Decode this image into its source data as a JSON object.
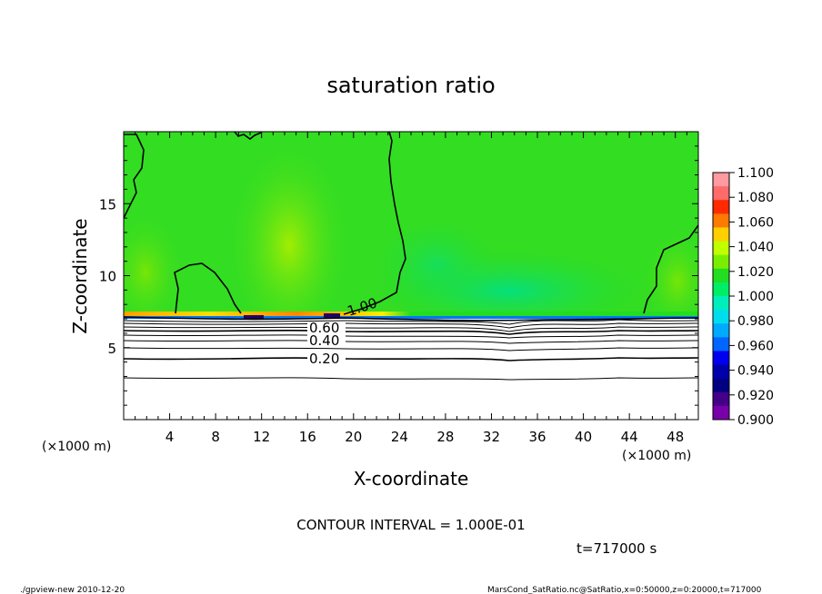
{
  "chart_data": {
    "type": "heatmap",
    "title": "saturation ratio",
    "xlabel": "X-coordinate",
    "ylabel": "Z-coordinate",
    "x_unit_note": "(×1000 m)",
    "y_unit_note": "(×1000 m)",
    "xlim": [
      0,
      50
    ],
    "ylim": [
      0,
      20
    ],
    "x_ticks": [
      4,
      8,
      12,
      16,
      20,
      24,
      28,
      32,
      36,
      40,
      44,
      48
    ],
    "y_ticks": [
      5,
      10,
      15
    ],
    "colorbar": {
      "ticks": [
        "1.100",
        "1.080",
        "1.060",
        "1.040",
        "1.020",
        "1.000",
        "0.980",
        "0.960",
        "0.940",
        "0.920",
        "0.900"
      ],
      "colors": [
        "#ff9aa0",
        "#ff6a6a",
        "#ff2a00",
        "#ff7a00",
        "#ffd000",
        "#bfff00",
        "#7aee00",
        "#22dd22",
        "#00ee66",
        "#00eebb",
        "#00ddee",
        "#00aaff",
        "#0066ff",
        "#0000ee",
        "#0000aa",
        "#000080",
        "#440088",
        "#7700aa"
      ]
    },
    "contour_labels": [
      "1.00",
      "0.60",
      "0.40",
      "0.20"
    ],
    "contour_interval_text": "CONTOUR INTERVAL = 1.000E-01",
    "time_text": "t=717000 s",
    "footer_left": "./gpview-new  2010-12-20",
    "footer_right": "MarsCond_SatRatio.nc@SatRatio,x=0:50000,z=0:20000,t=717000"
  }
}
